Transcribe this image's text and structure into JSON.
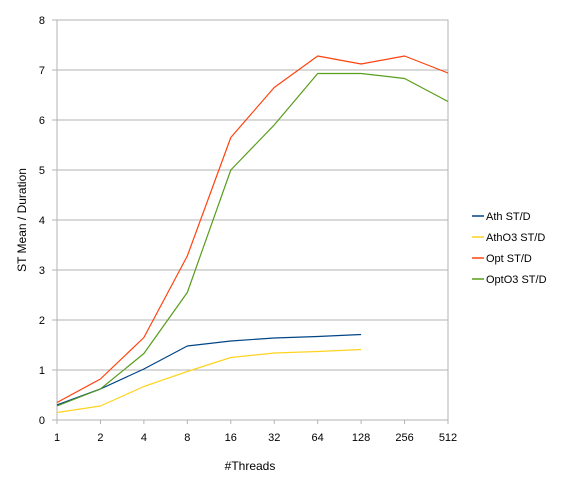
{
  "chart_data": {
    "type": "line",
    "title": "",
    "xlabel": "#Threads",
    "ylabel": "ST Mean / Duration",
    "categories": [
      "1",
      "2",
      "4",
      "8",
      "16",
      "32",
      "64",
      "128",
      "256",
      "512"
    ],
    "yticks": [
      "0",
      "1",
      "2",
      "3",
      "4",
      "5",
      "6",
      "7",
      "8"
    ],
    "ylim": [
      0,
      8
    ],
    "grid": "horizontal",
    "legend_position": "right",
    "series": [
      {
        "name": "Ath ST/D",
        "color": "#004586",
        "values": [
          0.3,
          0.62,
          1.02,
          1.48,
          1.58,
          1.64,
          1.67,
          1.71,
          null,
          null
        ]
      },
      {
        "name": "AthO3 ST/D",
        "color": "#ffd320",
        "values": [
          0.15,
          0.28,
          0.67,
          0.97,
          1.25,
          1.34,
          1.37,
          1.41,
          null,
          null
        ]
      },
      {
        "name": "Opt ST/D",
        "color": "#ff420e",
        "values": [
          0.35,
          0.82,
          1.65,
          3.28,
          5.65,
          6.65,
          7.28,
          7.12,
          7.28,
          6.94
        ]
      },
      {
        "name": "OptO3 ST/D",
        "color": "#579d1c",
        "values": [
          0.28,
          0.62,
          1.33,
          2.55,
          5.0,
          5.9,
          6.93,
          6.93,
          6.83,
          6.37
        ]
      }
    ]
  }
}
